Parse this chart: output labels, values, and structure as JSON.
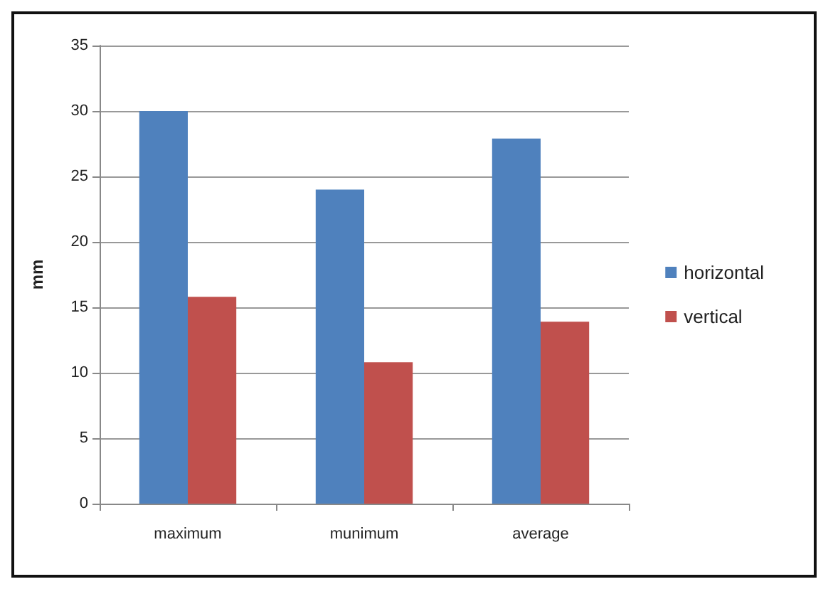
{
  "chart_data": {
    "type": "bar",
    "ylabel": "mm",
    "categories": [
      "maximum",
      "munimum",
      "average"
    ],
    "series": [
      {
        "name": "horizontal",
        "color": "#4f81bd",
        "values": [
          30,
          24,
          27.9
        ]
      },
      {
        "name": "vertical",
        "color": "#c0504d",
        "values": [
          15.8,
          10.8,
          13.9
        ]
      }
    ],
    "ylim": [
      0,
      35
    ],
    "yticks": [
      0,
      5,
      10,
      15,
      20,
      25,
      30,
      35
    ],
    "grid": "y",
    "legend": "right"
  }
}
